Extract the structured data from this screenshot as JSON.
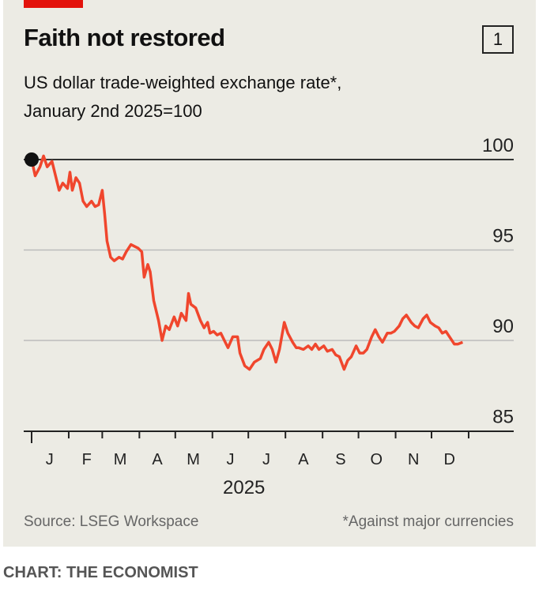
{
  "header": {
    "title": "Faith not restored",
    "chart_number": "1",
    "subtitle_line1": "US dollar trade-weighted exchange rate*,",
    "subtitle_line2": "January 2nd 2025=100"
  },
  "footer": {
    "source": "Source: LSEG Workspace",
    "note": "*Against major currencies",
    "credit": "CHART: THE ECONOMIST"
  },
  "colors": {
    "line": "#f0462d",
    "accent": "#e3120b",
    "background": "#ecebe4"
  },
  "chart_data": {
    "type": "line",
    "title": "Faith not restored",
    "subtitle": "US dollar trade-weighted exchange rate*, January 2nd 2025=100",
    "xlabel": "2025",
    "ylabel": "",
    "ylim": [
      85,
      100
    ],
    "yticks": [
      "85",
      "90",
      "95",
      "100"
    ],
    "xticklabels": [
      "J",
      "F",
      "M",
      "A",
      "M",
      "J",
      "J",
      "A",
      "S",
      "O",
      "N",
      "D"
    ],
    "x_unit": "day of year 2025",
    "series": [
      {
        "name": "US dollar trade-weighted index",
        "points": [
          [
            1,
            100.0
          ],
          [
            4,
            99.1
          ],
          [
            8,
            99.6
          ],
          [
            11,
            100.2
          ],
          [
            14,
            99.6
          ],
          [
            18,
            99.9
          ],
          [
            21,
            99.1
          ],
          [
            24,
            98.3
          ],
          [
            27,
            98.7
          ],
          [
            31,
            98.4
          ],
          [
            33,
            99.3
          ],
          [
            35,
            98.3
          ],
          [
            38,
            99.0
          ],
          [
            41,
            98.7
          ],
          [
            44,
            97.7
          ],
          [
            47,
            97.4
          ],
          [
            51,
            97.7
          ],
          [
            54,
            97.4
          ],
          [
            57,
            97.5
          ],
          [
            60,
            98.3
          ],
          [
            62,
            97.0
          ],
          [
            64,
            95.5
          ],
          [
            67,
            94.6
          ],
          [
            70,
            94.4
          ],
          [
            74,
            94.6
          ],
          [
            77,
            94.5
          ],
          [
            80,
            94.9
          ],
          [
            84,
            95.3
          ],
          [
            87,
            95.2
          ],
          [
            90,
            95.1
          ],
          [
            93,
            94.9
          ],
          [
            95,
            93.5
          ],
          [
            98,
            94.2
          ],
          [
            100,
            93.8
          ],
          [
            103,
            92.2
          ],
          [
            107,
            91.1
          ],
          [
            110,
            90.0
          ],
          [
            113,
            90.8
          ],
          [
            116,
            90.6
          ],
          [
            120,
            91.3
          ],
          [
            123,
            90.8
          ],
          [
            126,
            91.5
          ],
          [
            130,
            91.1
          ],
          [
            132,
            92.6
          ],
          [
            134,
            92.0
          ],
          [
            138,
            91.8
          ],
          [
            142,
            91.1
          ],
          [
            145,
            90.7
          ],
          [
            148,
            91.0
          ],
          [
            150,
            90.4
          ],
          [
            153,
            90.5
          ],
          [
            156,
            90.3
          ],
          [
            159,
            90.4
          ],
          [
            162,
            90.0
          ],
          [
            165,
            89.6
          ],
          [
            169,
            90.2
          ],
          [
            173,
            90.2
          ],
          [
            175,
            89.3
          ],
          [
            179,
            88.6
          ],
          [
            183,
            88.4
          ],
          [
            187,
            88.8
          ],
          [
            192,
            89.0
          ],
          [
            195,
            89.5
          ],
          [
            199,
            89.9
          ],
          [
            202,
            89.5
          ],
          [
            205,
            88.8
          ],
          [
            208,
            89.5
          ],
          [
            212,
            91.0
          ],
          [
            215,
            90.4
          ],
          [
            219,
            89.9
          ],
          [
            222,
            89.6
          ],
          [
            224,
            89.6
          ],
          [
            228,
            89.5
          ],
          [
            232,
            89.7
          ],
          [
            235,
            89.5
          ],
          [
            238,
            89.8
          ],
          [
            241,
            89.5
          ],
          [
            245,
            89.7
          ],
          [
            248,
            89.4
          ],
          [
            252,
            89.5
          ],
          [
            255,
            89.2
          ],
          [
            258,
            89.1
          ],
          [
            262,
            88.4
          ],
          [
            265,
            88.9
          ],
          [
            268,
            89.1
          ],
          [
            272,
            89.7
          ],
          [
            275,
            89.3
          ],
          [
            278,
            89.3
          ],
          [
            281,
            89.5
          ],
          [
            285,
            90.2
          ],
          [
            288,
            90.6
          ],
          [
            291,
            90.2
          ],
          [
            294,
            89.9
          ],
          [
            298,
            90.4
          ],
          [
            301,
            90.4
          ],
          [
            304,
            90.5
          ],
          [
            308,
            90.8
          ],
          [
            311,
            91.2
          ],
          [
            314,
            91.4
          ],
          [
            318,
            91.0
          ],
          [
            321,
            90.8
          ],
          [
            324,
            90.7
          ],
          [
            328,
            91.2
          ],
          [
            331,
            91.4
          ],
          [
            334,
            91.0
          ],
          [
            338,
            90.8
          ],
          [
            341,
            90.7
          ],
          [
            344,
            90.4
          ],
          [
            347,
            90.5
          ],
          [
            351,
            90.1
          ],
          [
            354,
            89.8
          ],
          [
            357,
            89.8
          ],
          [
            361,
            89.9
          ]
        ]
      }
    ],
    "grid": true
  }
}
